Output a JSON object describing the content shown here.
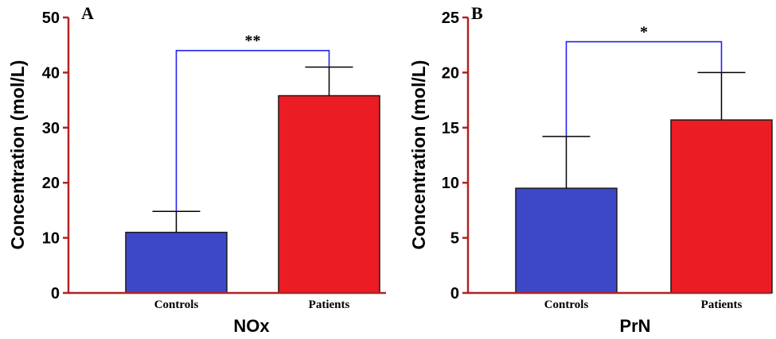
{
  "chart_data": [
    {
      "type": "bar",
      "panel_label": "A",
      "title": "",
      "xlabel": "NOx",
      "ylabel": "Concentration (mol/L)",
      "categories": [
        "Controls",
        "Patients"
      ],
      "values": [
        11.0,
        35.8
      ],
      "error_upper": [
        14.8,
        41.0
      ],
      "bar_colors": [
        "#3c48c8",
        "#ec1c24"
      ],
      "ylim": [
        0,
        50
      ],
      "yticks": [
        0,
        10,
        20,
        30,
        40,
        50
      ],
      "significance": {
        "label": "**",
        "between": [
          "Controls",
          "Patients"
        ],
        "bracket_y": 44
      },
      "grid": false,
      "axis_color": "#b22222",
      "bracket_color": "#2222ee"
    },
    {
      "type": "bar",
      "panel_label": "B",
      "title": "",
      "xlabel": "PrN",
      "ylabel": "Concentration (mol/L)",
      "categories": [
        "Controls",
        "Patients"
      ],
      "values": [
        9.5,
        15.7
      ],
      "error_upper": [
        14.2,
        20.0
      ],
      "bar_colors": [
        "#3c48c8",
        "#ec1c24"
      ],
      "ylim": [
        0,
        25
      ],
      "yticks": [
        0,
        5,
        10,
        15,
        20,
        25
      ],
      "significance": {
        "label": "*",
        "between": [
          "Controls",
          "Patients"
        ],
        "bracket_y": 22.8
      },
      "grid": false,
      "axis_color": "#b22222",
      "bracket_color": "#2222ee"
    }
  ]
}
